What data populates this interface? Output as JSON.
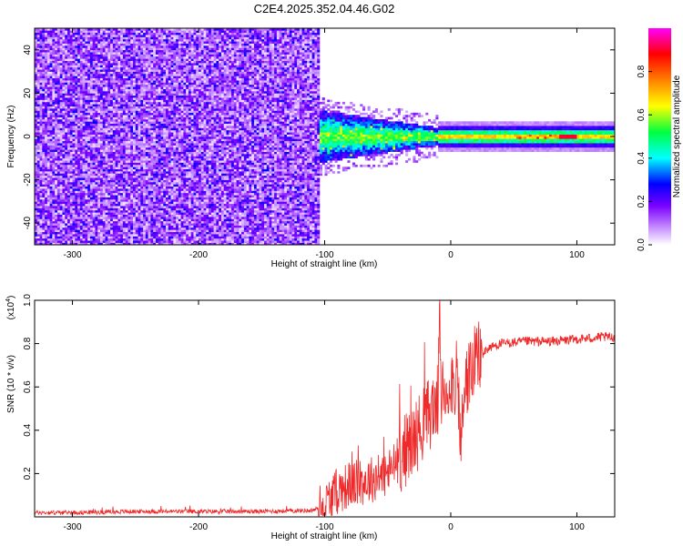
{
  "title": "C2E4.2025.352.04.46.G02",
  "chart_data": [
    {
      "type": "heatmap",
      "xlabel": "Height of straight line (km)",
      "ylabel": "Frequency (Hz)",
      "xlim": [
        -330,
        130
      ],
      "ylim": [
        -50,
        50
      ],
      "x_ticks": [
        -300,
        -200,
        -100,
        0,
        100
      ],
      "y_ticks": [
        -40,
        -20,
        0,
        20,
        40
      ],
      "grid": false,
      "colorbar": {
        "label": "Normalized spectral amplitude",
        "range": [
          0,
          1
        ],
        "ticks": [
          "0.0",
          "0.2",
          "0.4",
          "0.6",
          "0.8"
        ],
        "colors": [
          "#ffffff",
          "#c58cff",
          "#7a00ff",
          "#0000ff",
          "#00ffff",
          "#00ff40",
          "#ffff00",
          "#ff8000",
          "#ff0000",
          "#ff00ff"
        ]
      },
      "regions": [
        {
          "x_range": [
            -330,
            -105
          ],
          "freq_range": [
            -50,
            50
          ],
          "amplitude": "noise 0.05-0.3"
        },
        {
          "x_range": [
            -105,
            -10
          ],
          "freq_range": [
            -12,
            12
          ],
          "amplitude": "0.2-0.6"
        },
        {
          "x_range": [
            -10,
            130
          ],
          "freq_range": [
            -4,
            4
          ],
          "amplitude": "0.6-1.0",
          "center_freq": 0
        }
      ]
    },
    {
      "type": "line",
      "xlabel": "Height of straight line (km)",
      "ylabel": "SNR (10 * v/v)",
      "y_multiplier": "(x10",
      "y_multiplier_exp": "4",
      "y_multiplier_close": ")",
      "xlim": [
        -330,
        130
      ],
      "ylim": [
        0,
        1.0
      ],
      "x_ticks": [
        -300,
        -200,
        -100,
        0,
        100
      ],
      "y_ticks": [
        "0.2",
        "0.4",
        "0.6",
        "0.8",
        "1.0"
      ],
      "series_color": "#ee2a2a",
      "grid": false,
      "trend": [
        [
          -330,
          0.02
        ],
        [
          -300,
          0.02
        ],
        [
          -250,
          0.025
        ],
        [
          -200,
          0.025
        ],
        [
          -150,
          0.025
        ],
        [
          -110,
          0.03
        ],
        [
          -100,
          0.05
        ],
        [
          -90,
          0.12
        ],
        [
          -80,
          0.15
        ],
        [
          -70,
          0.16
        ],
        [
          -60,
          0.18
        ],
        [
          -50,
          0.2
        ],
        [
          -40,
          0.28
        ],
        [
          -30,
          0.35
        ],
        [
          -20,
          0.45
        ],
        [
          -12,
          0.52
        ],
        [
          -5,
          0.58
        ],
        [
          0,
          0.62
        ],
        [
          5,
          0.64
        ],
        [
          8,
          0.35
        ],
        [
          12,
          0.62
        ],
        [
          20,
          0.72
        ],
        [
          30,
          0.78
        ],
        [
          40,
          0.8
        ],
        [
          60,
          0.81
        ],
        [
          80,
          0.81
        ],
        [
          100,
          0.82
        ],
        [
          120,
          0.83
        ],
        [
          130,
          0.83
        ]
      ]
    }
  ]
}
